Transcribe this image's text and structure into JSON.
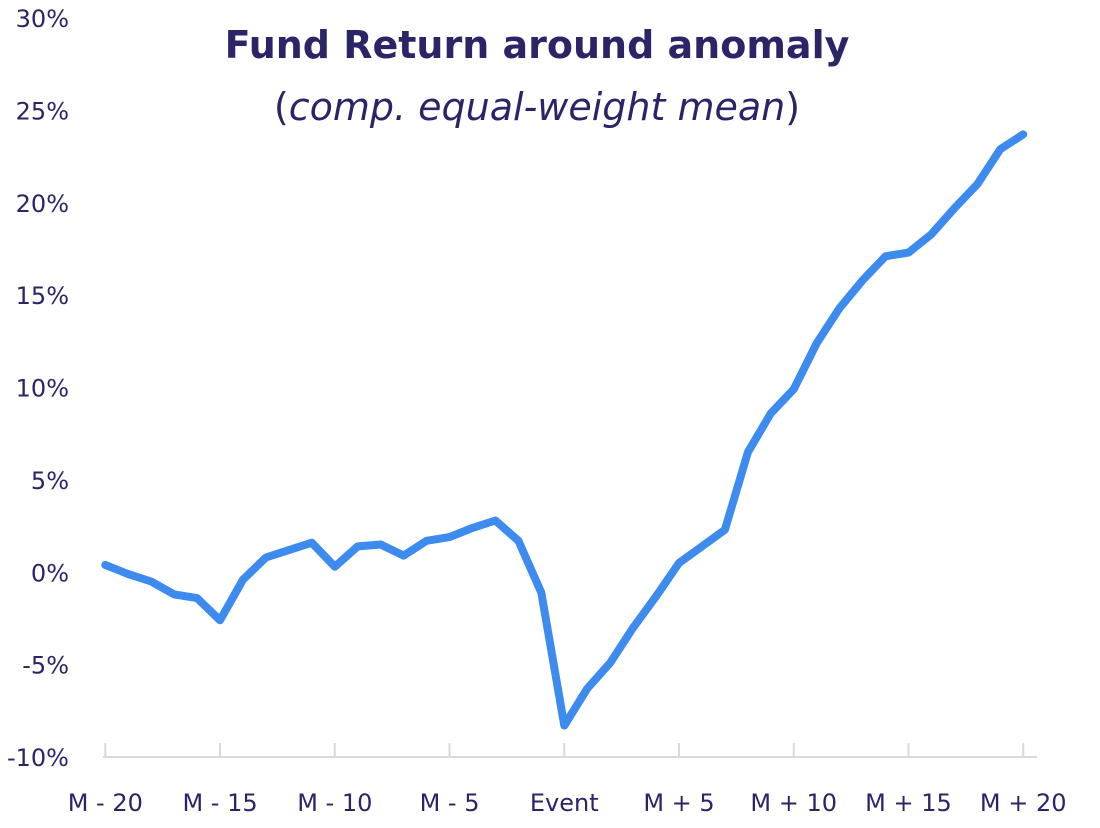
{
  "chart_data": {
    "type": "line",
    "title": "Fund Return around anomaly",
    "subtitle_open": "(",
    "subtitle_italic": "comp. equal-weight mean",
    "subtitle_close": ")",
    "xlabel": "",
    "ylabel": "",
    "ylim": [
      -10,
      30
    ],
    "grid": false,
    "y_ticks": [
      {
        "value": 30,
        "label": "30%"
      },
      {
        "value": 25,
        "label": "25%"
      },
      {
        "value": 20,
        "label": "20%"
      },
      {
        "value": 15,
        "label": "15%"
      },
      {
        "value": 10,
        "label": "10%"
      },
      {
        "value": 5,
        "label": "5%"
      },
      {
        "value": 0,
        "label": "0%"
      },
      {
        "value": -5,
        "label": "-5%"
      },
      {
        "value": -10,
        "label": "-10%"
      }
    ],
    "x_ticks": [
      {
        "value": -20,
        "label": "M - 20"
      },
      {
        "value": -15,
        "label": "M - 15"
      },
      {
        "value": -10,
        "label": "M - 10"
      },
      {
        "value": -5,
        "label": "M - 5"
      },
      {
        "value": 0,
        "label": "Event"
      },
      {
        "value": 5,
        "label": "M + 5"
      },
      {
        "value": 10,
        "label": "M + 10"
      },
      {
        "value": 15,
        "label": "M + 15"
      },
      {
        "value": 20,
        "label": "M + 20"
      }
    ],
    "x": [
      -20,
      -19,
      -18,
      -17,
      -16,
      -15,
      -14,
      -13,
      -12,
      -11,
      -10,
      -9,
      -8,
      -7,
      -6,
      -5,
      -4,
      -3,
      -2,
      -1,
      0,
      1,
      2,
      3,
      4,
      5,
      6,
      7,
      8,
      9,
      10,
      11,
      12,
      13,
      14,
      15,
      16,
      17,
      18,
      19,
      20
    ],
    "series": [
      {
        "color": "#3e8bef",
        "values": [
          0.4,
          -0.1,
          -0.5,
          -1.2,
          -1.4,
          -2.6,
          -0.4,
          0.8,
          1.2,
          1.6,
          0.3,
          1.4,
          1.5,
          0.9,
          1.7,
          1.9,
          2.4,
          2.8,
          1.7,
          -1.1,
          -8.3,
          -6.3,
          -4.9,
          -3.0,
          -1.3,
          0.5,
          1.4,
          2.3,
          6.5,
          8.6,
          9.9,
          12.4,
          14.3,
          15.8,
          17.1,
          17.3,
          18.3,
          19.7,
          21.0,
          22.9,
          23.7
        ]
      }
    ]
  }
}
